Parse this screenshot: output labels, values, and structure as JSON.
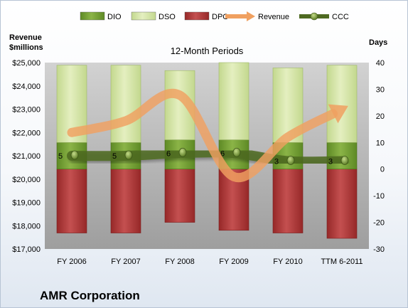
{
  "company": "AMR Corporation",
  "chart_data": {
    "type": "bar",
    "title": "12-Month Periods",
    "ylabel_left": "Revenue\n$millions",
    "ylabel_right": "Days",
    "categories": [
      "FY 2006",
      "FY 2007",
      "FY 2008",
      "FY 2009",
      "FY 2010",
      "TTM 6-2011"
    ],
    "legend": [
      {
        "name": "DIO",
        "kind": "bar",
        "color": "#7fa63a"
      },
      {
        "name": "DSO",
        "kind": "bar",
        "color": "#d8e8a8"
      },
      {
        "name": "DPO",
        "kind": "bar",
        "color": "#b03a3a"
      },
      {
        "name": "Revenue",
        "kind": "line",
        "color": "#f0a060"
      },
      {
        "name": "CCC",
        "kind": "line",
        "color": "#4e6a22"
      }
    ],
    "legend_position": "top",
    "left_axis": {
      "min": 17000,
      "max": 25000,
      "step": 1000,
      "ticks": [
        "$17,000",
        "$18,000",
        "$19,000",
        "$20,000",
        "$21,000",
        "$22,000",
        "$23,000",
        "$24,000",
        "$25,000"
      ]
    },
    "right_axis": {
      "min": -30,
      "max": 40,
      "step": 10,
      "ticks": [
        "-30",
        "-20",
        "-10",
        "0",
        "10",
        "20",
        "30",
        "40"
      ]
    },
    "series": [
      {
        "name": "DIO",
        "axis": "right",
        "values": [
          10,
          10,
          11,
          11,
          10,
          10
        ]
      },
      {
        "name": "DSO",
        "axis": "right",
        "values": [
          29,
          29,
          26,
          29,
          28,
          29
        ]
      },
      {
        "name": "DPO",
        "axis": "right",
        "values": [
          -24,
          -24,
          -20,
          -23,
          -24,
          -26
        ]
      },
      {
        "name": "Revenue",
        "axis": "left",
        "values": [
          22000,
          22500,
          23600,
          20100,
          21800,
          23000
        ]
      },
      {
        "name": "CCC",
        "axis": "right",
        "values": [
          5,
          5,
          6,
          6,
          3,
          3
        ],
        "labels": [
          "5",
          "5",
          "6",
          "6",
          "3",
          "3"
        ]
      }
    ],
    "grid": false
  }
}
